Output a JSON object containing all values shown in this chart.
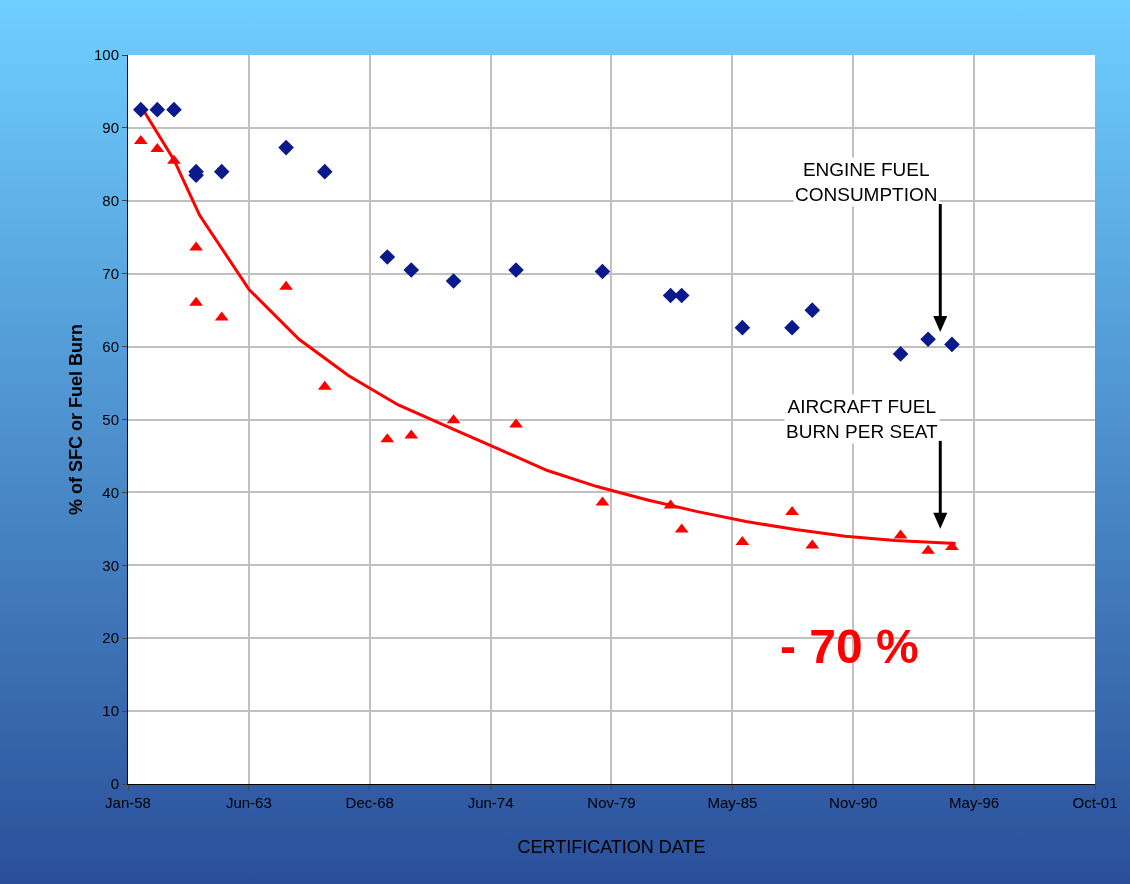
{
  "chart_data": {
    "type": "scatter",
    "xlabel": "CERTIFICATION DATE",
    "ylabel": "% of SFC or Fuel Burn",
    "xlim": [
      "1958-01-01",
      "2001-10-23"
    ],
    "xticks": [
      {
        "value": "1958-01-01",
        "label": "Jan-58"
      },
      {
        "value": "1963-06-24",
        "label": "Jun-63"
      },
      {
        "value": "1968-12-14",
        "label": "Dec-68"
      },
      {
        "value": "1974-06-06",
        "label": "Jun-74"
      },
      {
        "value": "1979-11-27",
        "label": "Nov-79"
      },
      {
        "value": "1985-05-20",
        "label": "May-85"
      },
      {
        "value": "1990-11-10",
        "label": "Nov-90"
      },
      {
        "value": "1996-05-02",
        "label": "May-96"
      },
      {
        "value": "2001-10-23",
        "label": "Oct-01"
      }
    ],
    "ylim": [
      0,
      100
    ],
    "yticks": [
      0,
      10,
      20,
      30,
      40,
      50,
      60,
      70,
      80,
      90,
      100
    ],
    "grid": true,
    "series": [
      {
        "marker": "diamond",
        "color": "#0a1a8c",
        "x": [
          "1958-08",
          "1959-05",
          "1960-02",
          "1961-02",
          "1961-02",
          "1962-04",
          "1965-03",
          "1966-12",
          "1969-10",
          "1970-11",
          "1972-10",
          "1975-08",
          "1979-07",
          "1982-08",
          "1983-02",
          "1985-11",
          "1988-02",
          "1989-01",
          "1993-01",
          "1994-04",
          "1995-05"
        ],
        "values": [
          92.5,
          92.5,
          92.5,
          84,
          83.5,
          84,
          87.3,
          84,
          72.3,
          70.5,
          69,
          70.5,
          70.3,
          67,
          67,
          62.6,
          62.6,
          65,
          59,
          61,
          60.3
        ]
      },
      {
        "marker": "triangle",
        "color": "#ff0000",
        "x": [
          "1958-08",
          "1959-05",
          "1960-02",
          "1961-02",
          "1961-02",
          "1962-04",
          "1965-03",
          "1966-12",
          "1969-10",
          "1970-11",
          "1972-10",
          "1975-08",
          "1979-07",
          "1982-08",
          "1983-02",
          "1985-11",
          "1988-02",
          "1989-01",
          "1993-01",
          "1994-04",
          "1995-05"
        ],
        "values": [
          88.2,
          87.1,
          85.5,
          73.6,
          66,
          64,
          68.2,
          54.5,
          47.3,
          47.8,
          49.9,
          49.3,
          38.6,
          38.2,
          34.9,
          33.2,
          37.3,
          32.7,
          34.1,
          32,
          32.5
        ]
      },
      {
        "type": "line",
        "marker": "none",
        "line_style": "solid",
        "color": "#ff0000",
        "x": [
          "1958-08",
          "1960-02",
          "1961-04",
          "1963-07",
          "1965-10",
          "1968-01",
          "1970-04",
          "1972-07",
          "1974-10",
          "1977-01",
          "1979-04",
          "1981-07",
          "1983-10",
          "1986-01",
          "1988-04",
          "1990-07",
          "1992-10",
          "1995-07"
        ],
        "values": [
          93,
          85.6,
          78,
          67.8,
          61,
          56,
          52,
          49,
          46,
          43,
          40.8,
          39,
          37.4,
          36,
          34.9,
          34,
          33.4,
          33
        ]
      }
    ],
    "annotations": [
      "ENGINE FUEL\nCONSUMPTION",
      "AIRCRAFT FUEL\nBURN PER SEAT",
      "- 70 %"
    ]
  }
}
